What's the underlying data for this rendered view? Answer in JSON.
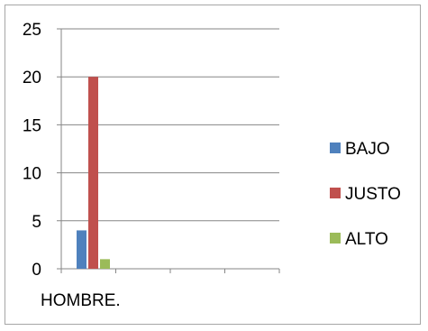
{
  "chart_data": {
    "type": "bar",
    "categories": [
      "HOMBRE."
    ],
    "series": [
      {
        "name": "BAJO",
        "values": [
          4
        ],
        "color": "#4f81bd"
      },
      {
        "name": "JUSTO",
        "values": [
          20
        ],
        "color": "#c0504d"
      },
      {
        "name": "ALTO",
        "values": [
          1
        ],
        "color": "#9bbb59"
      }
    ],
    "ylim": [
      0,
      25
    ],
    "yticks": [
      0,
      5,
      10,
      15,
      20,
      25
    ],
    "xlabel": "",
    "ylabel": "",
    "title": "",
    "grid": true,
    "legend_position": "right",
    "gridline_color": "#868686",
    "axis_color": "#868686"
  }
}
